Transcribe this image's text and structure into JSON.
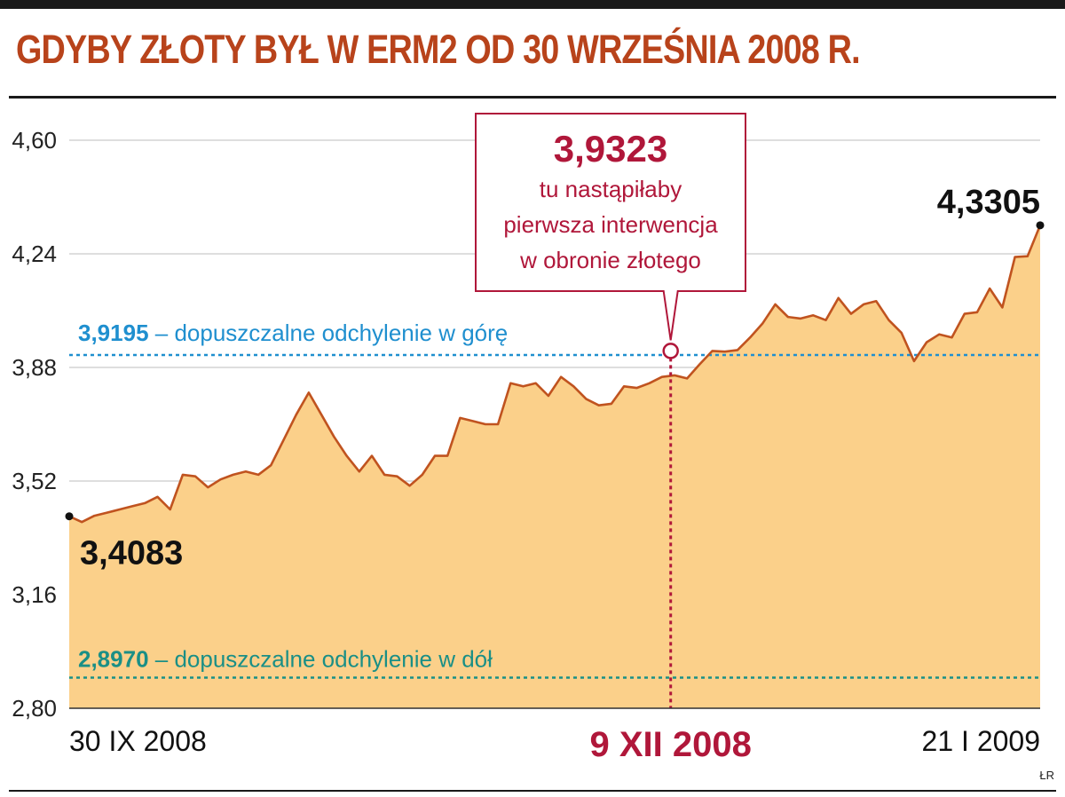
{
  "title": "GDYBY ZŁOTY BYŁ W ERM2 OD 30 WRZEŚNIA 2008 R.",
  "credit": "ŁR",
  "colors": {
    "title": "#b8431b",
    "area_fill": "#fbd08a",
    "line": "#c0531f",
    "upper_band": "#1f8fcf",
    "lower_band": "#1a8f86",
    "highlight": "#b0173a",
    "grid": "#c9c9c9"
  },
  "chart_data": {
    "type": "area",
    "ylim": [
      2.8,
      4.6
    ],
    "yticks": [
      2.8,
      3.16,
      3.52,
      3.88,
      4.24,
      4.6
    ],
    "ytick_labels": [
      "2,80",
      "3,16",
      "3,52",
      "3,88",
      "4,24",
      "4,60"
    ],
    "x_axis_labels": {
      "start": "30 IX 2008",
      "highlight": "9 XII 2008",
      "end": "21 I 2009"
    },
    "x_range": [
      "2008-09-30",
      "2009-01-21"
    ],
    "series": [
      {
        "values": [
          3.4083,
          3.39,
          3.41,
          3.42,
          3.43,
          3.44,
          3.45,
          3.47,
          3.43,
          3.54,
          3.535,
          3.5,
          3.525,
          3.54,
          3.55,
          3.54,
          3.57,
          3.65,
          3.73,
          3.8,
          3.73,
          3.66,
          3.6,
          3.55,
          3.6,
          3.54,
          3.535,
          3.505,
          3.54,
          3.6,
          3.6,
          3.72,
          3.71,
          3.7,
          3.7,
          3.83,
          3.82,
          3.83,
          3.79,
          3.85,
          3.82,
          3.78,
          3.76,
          3.765,
          3.82,
          3.815,
          3.83,
          3.85,
          3.855,
          3.845,
          3.89,
          3.9323,
          3.93,
          3.935,
          3.975,
          4.02,
          4.08,
          4.04,
          4.035,
          4.045,
          4.03,
          4.1,
          4.05,
          4.08,
          4.09,
          4.03,
          3.99,
          3.9,
          3.96,
          3.985,
          3.975,
          4.05,
          4.055,
          4.13,
          4.07,
          4.23,
          4.2325,
          4.3305
        ]
      }
    ],
    "reference_lines": [
      {
        "value": 3.9195,
        "label_value": "3,9195",
        "label_text": " – dopuszczalne odchylenie w górę"
      },
      {
        "value": 2.897,
        "label_value": "2,8970",
        "label_text": " – dopuszczalne odchylenie w dół"
      }
    ],
    "annotations": {
      "start": {
        "value": 3.4083,
        "label": "3,4083"
      },
      "end": {
        "value": 4.3305,
        "label": "4,3305"
      },
      "highlight": {
        "date": "2008-12-09",
        "value": 3.9323,
        "value_label": "3,9323",
        "lines": [
          "tu nastąpiłaby",
          "pierwsza interwencja",
          "w obronie złotego"
        ]
      }
    },
    "grid": true
  }
}
